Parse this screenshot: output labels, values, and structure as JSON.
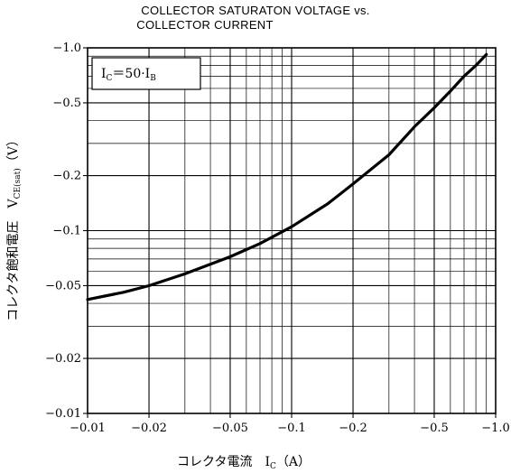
{
  "chart_data": {
    "type": "line",
    "title_line1": "COLLECTOR SATURATON VOLTAGE vs.",
    "title_line2": "COLLECTOR CURRENT",
    "xlabel": "コレクタ電流　I",
    "xlabel_sub": "C",
    "xlabel_unit": "（A）",
    "ylabel": "コレクタ飽和電圧　V",
    "ylabel_sub": "CE(sat)",
    "ylabel_unit": "（V）",
    "condition": "I",
    "condition_sub1": "C",
    "condition_mid": "＝50·I",
    "condition_sub2": "B",
    "x_scale": "log",
    "y_scale": "log",
    "xlim": [
      -0.01,
      -1.0
    ],
    "ylim": [
      -0.01,
      -1.0
    ],
    "x_ticks": [
      -0.01,
      -0.02,
      -0.05,
      -0.1,
      -0.2,
      -0.5,
      -1.0
    ],
    "x_tick_labels": [
      "−0.01",
      "−0.02",
      "−0.05",
      "−0.1",
      "−0.2",
      "−0.5",
      "−1.0"
    ],
    "y_ticks": [
      -1.0,
      -0.5,
      -0.2,
      -0.1,
      -0.05,
      -0.02,
      -0.01
    ],
    "y_tick_labels": [
      "−1.0",
      "−0.5",
      "−0.2",
      "−0.1",
      "−0.05",
      "−0.02",
      "−0.01"
    ],
    "grid": true,
    "series": [
      {
        "x": [
          -0.01,
          -0.015,
          -0.02,
          -0.03,
          -0.05,
          -0.07,
          -0.1,
          -0.15,
          -0.2,
          -0.3,
          -0.4,
          -0.5,
          -0.6,
          -0.7,
          -0.8,
          -0.9
        ],
        "y": [
          -0.042,
          -0.046,
          -0.05,
          -0.058,
          -0.072,
          -0.085,
          -0.105,
          -0.14,
          -0.18,
          -0.26,
          -0.37,
          -0.47,
          -0.58,
          -0.7,
          -0.8,
          -0.92
        ]
      }
    ]
  }
}
